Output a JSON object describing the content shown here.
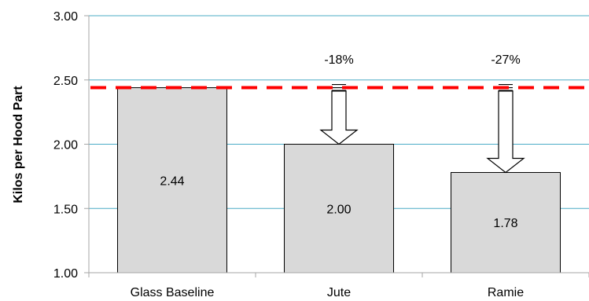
{
  "chart_data": {
    "type": "bar",
    "title": "",
    "xlabel": "",
    "ylabel": "Kilos per Hood Part",
    "ylim": [
      1.0,
      3.0
    ],
    "yticks": [
      1.0,
      1.5,
      2.0,
      2.5,
      3.0
    ],
    "ytick_labels": [
      "1.00",
      "1.50",
      "2.00",
      "2.50",
      "3.00"
    ],
    "grid": "horizontal",
    "categories": [
      "Glass Baseline",
      "Jute",
      "Ramie"
    ],
    "values": [
      2.44,
      2.0,
      1.78
    ],
    "value_labels": [
      "2.44",
      "2.00",
      "1.78"
    ],
    "baseline": {
      "value": 2.44,
      "style": "dashed"
    },
    "reductions": [
      {
        "category": "Jute",
        "label": "-18%"
      },
      {
        "category": "Ramie",
        "label": "-27%"
      }
    ],
    "colors": {
      "bar_fill": "#d9d9d9",
      "bar_stroke": "#000000",
      "grid": "#4bacc6",
      "baseline": "#ff0000",
      "axis": "#a6a6a6"
    }
  }
}
